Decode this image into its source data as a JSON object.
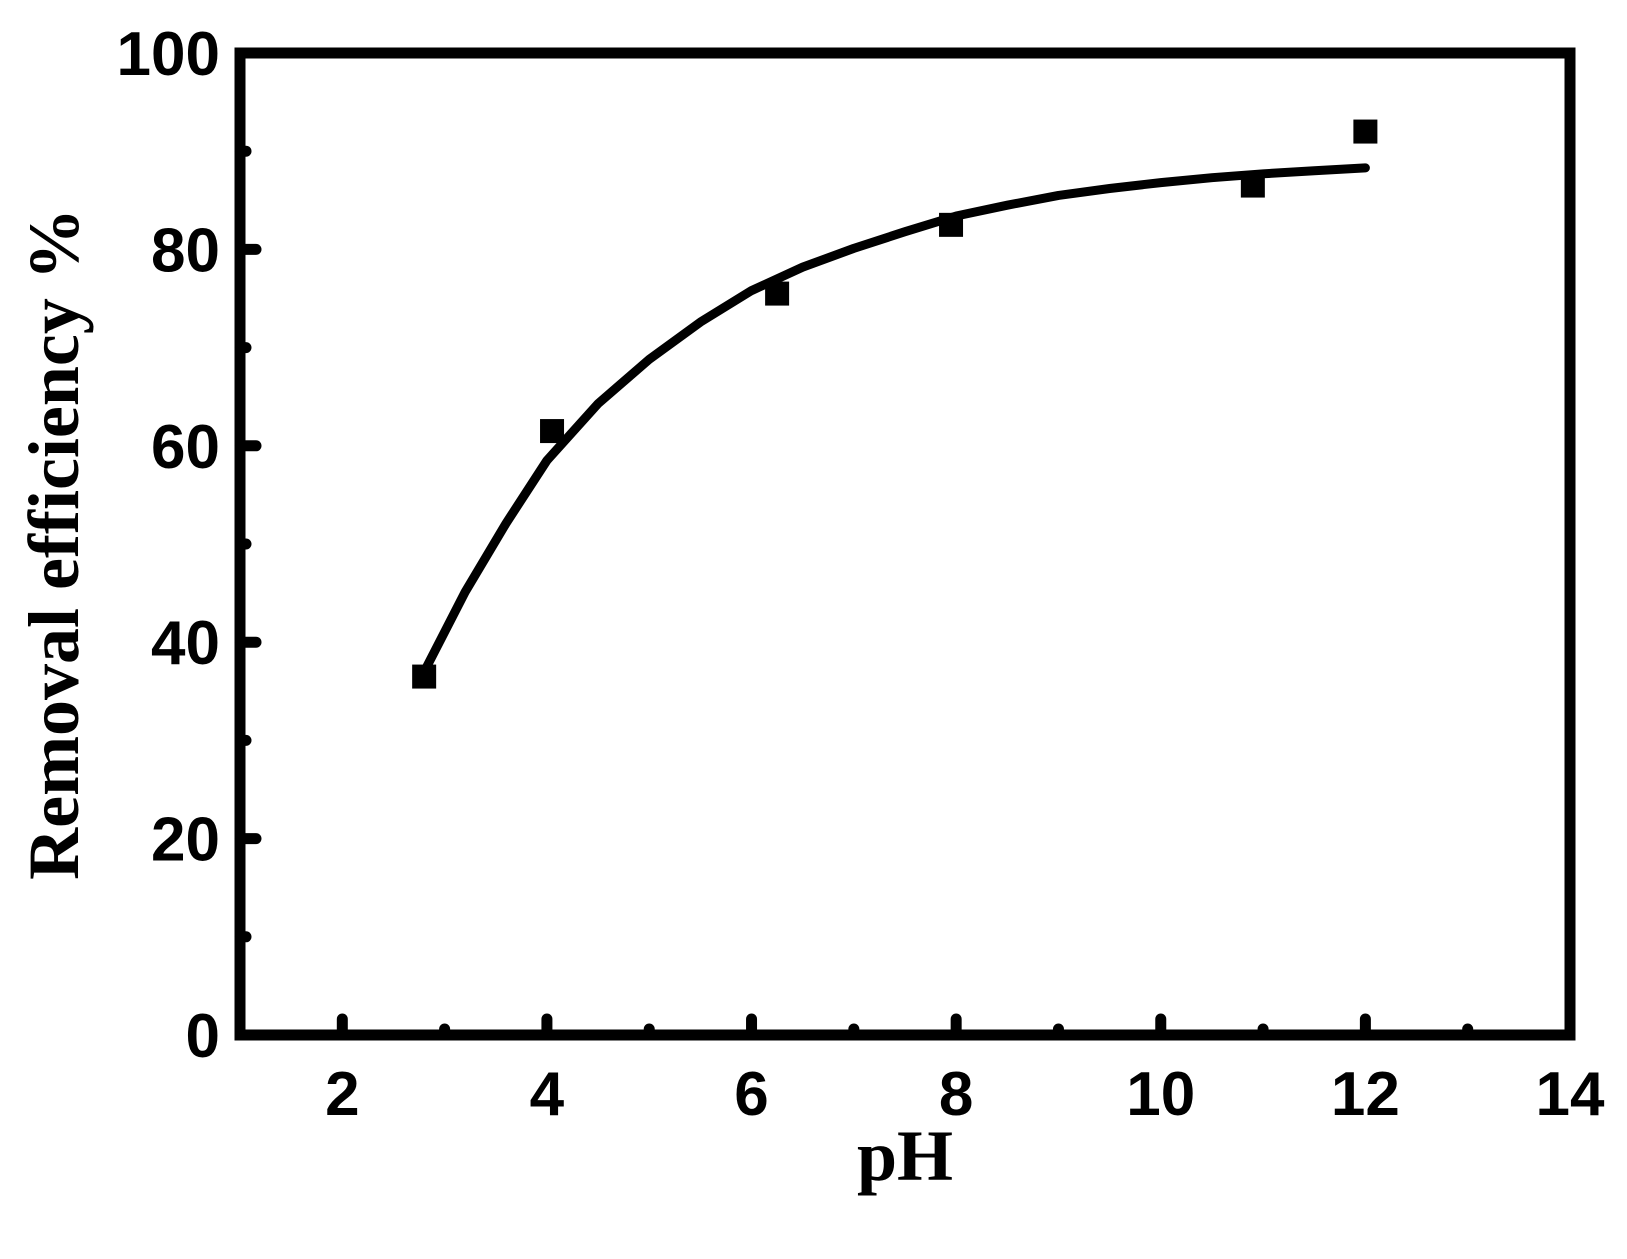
{
  "chart_data": {
    "type": "scatter",
    "xlabel": "pH",
    "ylabel": "Removal efficiency %",
    "xlim": [
      1,
      14
    ],
    "ylim": [
      0,
      100
    ],
    "x_ticks": [
      2,
      4,
      6,
      8,
      10,
      12,
      14
    ],
    "y_ticks": [
      0,
      20,
      40,
      60,
      80,
      100
    ],
    "x_minor_ticks": [
      3,
      5,
      7,
      9,
      11,
      13
    ],
    "y_minor_ticks": [
      10,
      30,
      50,
      70,
      90
    ],
    "grid": false,
    "legend": "none",
    "points": [
      {
        "x": 2.8,
        "y": 36.5
      },
      {
        "x": 4.05,
        "y": 61.5
      },
      {
        "x": 6.25,
        "y": 75.5
      },
      {
        "x": 7.95,
        "y": 82.5
      },
      {
        "x": 10.9,
        "y": 86.5
      },
      {
        "x": 12.0,
        "y": 92.0
      }
    ],
    "fit_curve": {
      "x": [
        2.8,
        3.2,
        3.6,
        4.0,
        4.5,
        5.0,
        5.5,
        6.0,
        6.5,
        7.0,
        7.5,
        8.0,
        8.5,
        9.0,
        9.5,
        10.0,
        10.5,
        11.0,
        11.5,
        12.0
      ],
      "y": [
        37.0,
        45.1,
        52.1,
        58.5,
        64.3,
        68.8,
        72.6,
        75.8,
        78.2,
        80.1,
        81.8,
        83.4,
        84.5,
        85.5,
        86.2,
        86.8,
        87.3,
        87.7,
        88.0,
        88.3
      ]
    },
    "colors": {
      "marker": "#000000",
      "line": "#000000",
      "axes": "#000000"
    }
  }
}
